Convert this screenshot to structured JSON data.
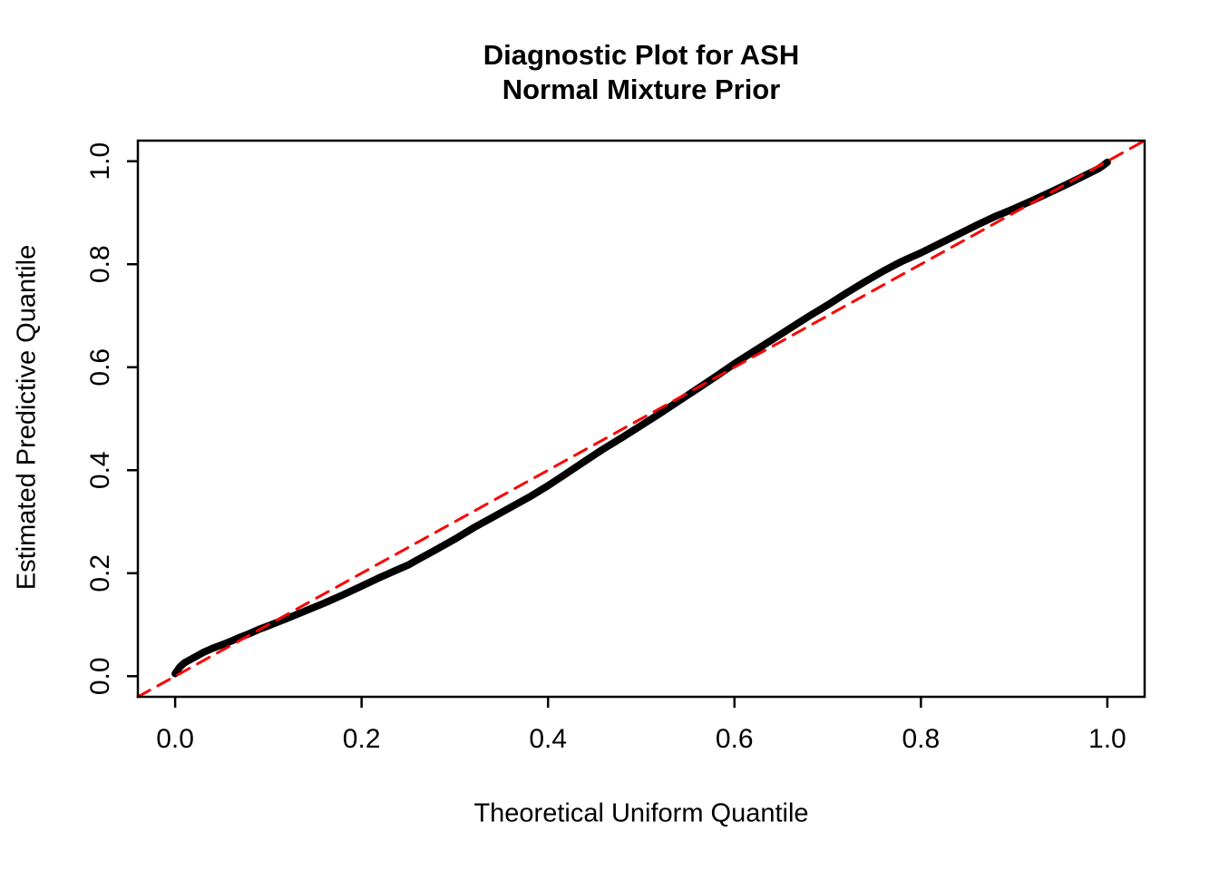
{
  "page": {
    "background_color": "#ffffff",
    "foreground_color": "#000000"
  },
  "title": {
    "line1": "Diagnostic Plot for ASH",
    "line2": "Normal Mixture Prior"
  },
  "chart_data": {
    "type": "line",
    "title": "Diagnostic Plot for ASH\nNormal Mixture Prior",
    "xlabel": "Theoretical Uniform Quantile",
    "ylabel": "Estimated Predictive Quantile",
    "xlim": [
      -0.04,
      1.04
    ],
    "ylim": [
      -0.04,
      1.04
    ],
    "x_ticks": [
      0,
      0.2,
      0.4,
      0.6,
      0.8,
      1
    ],
    "x_tick_labels": [
      "0.0",
      "0.2",
      "0.4",
      "0.6",
      "0.8",
      "1.0"
    ],
    "y_ticks": [
      0,
      0.2,
      0.4,
      0.6,
      0.8,
      1
    ],
    "y_tick_labels": [
      "0.0",
      "0.2",
      "0.4",
      "0.6",
      "0.8",
      "1.0"
    ],
    "grid": false,
    "frame_color": "#000000",
    "series": [
      {
        "name": "estimated-predictive-quantile-curve",
        "color": "#000000",
        "style": "solid",
        "width": 8,
        "points": [
          [
            0.0,
            0.005
          ],
          [
            0.005,
            0.018
          ],
          [
            0.01,
            0.026
          ],
          [
            0.02,
            0.036
          ],
          [
            0.03,
            0.046
          ],
          [
            0.04,
            0.054
          ],
          [
            0.05,
            0.061
          ],
          [
            0.06,
            0.068
          ],
          [
            0.07,
            0.076
          ],
          [
            0.08,
            0.083
          ],
          [
            0.09,
            0.091
          ],
          [
            0.1,
            0.098
          ],
          [
            0.11,
            0.105
          ],
          [
            0.12,
            0.112
          ],
          [
            0.14,
            0.127
          ],
          [
            0.16,
            0.142
          ],
          [
            0.18,
            0.158
          ],
          [
            0.2,
            0.175
          ],
          [
            0.22,
            0.192
          ],
          [
            0.24,
            0.208
          ],
          [
            0.25,
            0.216
          ],
          [
            0.26,
            0.226
          ],
          [
            0.28,
            0.246
          ],
          [
            0.3,
            0.266
          ],
          [
            0.32,
            0.288
          ],
          [
            0.34,
            0.308
          ],
          [
            0.36,
            0.328
          ],
          [
            0.38,
            0.348
          ],
          [
            0.4,
            0.37
          ],
          [
            0.42,
            0.394
          ],
          [
            0.44,
            0.418
          ],
          [
            0.46,
            0.442
          ],
          [
            0.48,
            0.464
          ],
          [
            0.5,
            0.487
          ],
          [
            0.52,
            0.51
          ],
          [
            0.54,
            0.534
          ],
          [
            0.56,
            0.558
          ],
          [
            0.58,
            0.582
          ],
          [
            0.6,
            0.607
          ],
          [
            0.62,
            0.63
          ],
          [
            0.64,
            0.653
          ],
          [
            0.66,
            0.676
          ],
          [
            0.68,
            0.699
          ],
          [
            0.7,
            0.721
          ],
          [
            0.72,
            0.744
          ],
          [
            0.74,
            0.766
          ],
          [
            0.76,
            0.787
          ],
          [
            0.78,
            0.806
          ],
          [
            0.8,
            0.822
          ],
          [
            0.82,
            0.84
          ],
          [
            0.84,
            0.858
          ],
          [
            0.86,
            0.876
          ],
          [
            0.88,
            0.893
          ],
          [
            0.9,
            0.908
          ],
          [
            0.92,
            0.924
          ],
          [
            0.94,
            0.941
          ],
          [
            0.96,
            0.958
          ],
          [
            0.98,
            0.976
          ],
          [
            0.99,
            0.985
          ],
          [
            0.995,
            0.991
          ],
          [
            1.0,
            0.998
          ]
        ]
      },
      {
        "name": "identity-reference-line",
        "color": "#ff0000",
        "style": "dashed",
        "width": 3,
        "points": [
          [
            -0.04,
            -0.04
          ],
          [
            1.04,
            1.04
          ]
        ]
      }
    ]
  }
}
